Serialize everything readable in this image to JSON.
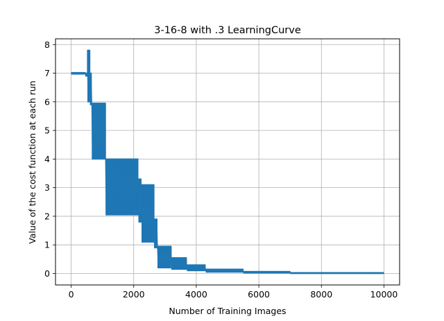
{
  "chart_data": {
    "type": "line",
    "title": "3-16-8 with .3 LearningCurve",
    "xlabel": "Number of Training Images",
    "ylabel": "Value of the cost function at each run",
    "xlim": [
      -500,
      10500
    ],
    "ylim": [
      -0.4,
      8.2
    ],
    "grid": true,
    "line_color": "#1f77b4",
    "x_ticks": [
      0,
      2000,
      4000,
      6000,
      8000,
      10000
    ],
    "x_tick_labels": [
      "0",
      "2000",
      "4000",
      "6000",
      "8000",
      "10000"
    ],
    "y_ticks": [
      0,
      1,
      2,
      3,
      4,
      5,
      6,
      7,
      8
    ],
    "y_tick_labels": [
      "0",
      "1",
      "2",
      "3",
      "4",
      "5",
      "6",
      "7",
      "8"
    ],
    "series": [
      {
        "name": "",
        "bands": [
          {
            "x_start": 0,
            "x_end": 450,
            "low": 6.97,
            "high": 7.02
          },
          {
            "x_start": 450,
            "x_end": 520,
            "low": 6.9,
            "high": 7.0
          },
          {
            "x_start": 520,
            "x_end": 600,
            "low": 6.0,
            "high": 7.8
          },
          {
            "x_start": 600,
            "x_end": 660,
            "low": 5.9,
            "high": 7.0
          },
          {
            "x_start": 660,
            "x_end": 1100,
            "low": 4.0,
            "high": 5.95
          },
          {
            "x_start": 1100,
            "x_end": 2150,
            "low": 2.05,
            "high": 4.0
          },
          {
            "x_start": 2150,
            "x_end": 2250,
            "low": 1.8,
            "high": 3.3
          },
          {
            "x_start": 2250,
            "x_end": 2650,
            "low": 1.1,
            "high": 3.1
          },
          {
            "x_start": 2650,
            "x_end": 2760,
            "low": 0.9,
            "high": 1.9
          },
          {
            "x_start": 2760,
            "x_end": 3200,
            "low": 0.2,
            "high": 0.95
          },
          {
            "x_start": 3200,
            "x_end": 3700,
            "low": 0.15,
            "high": 0.55
          },
          {
            "x_start": 3700,
            "x_end": 4300,
            "low": 0.1,
            "high": 0.3
          },
          {
            "x_start": 4300,
            "x_end": 5500,
            "low": 0.05,
            "high": 0.15
          },
          {
            "x_start": 5500,
            "x_end": 7000,
            "low": 0.02,
            "high": 0.07
          },
          {
            "x_start": 7000,
            "x_end": 10000,
            "low": 0.0,
            "high": 0.03
          }
        ]
      }
    ]
  }
}
